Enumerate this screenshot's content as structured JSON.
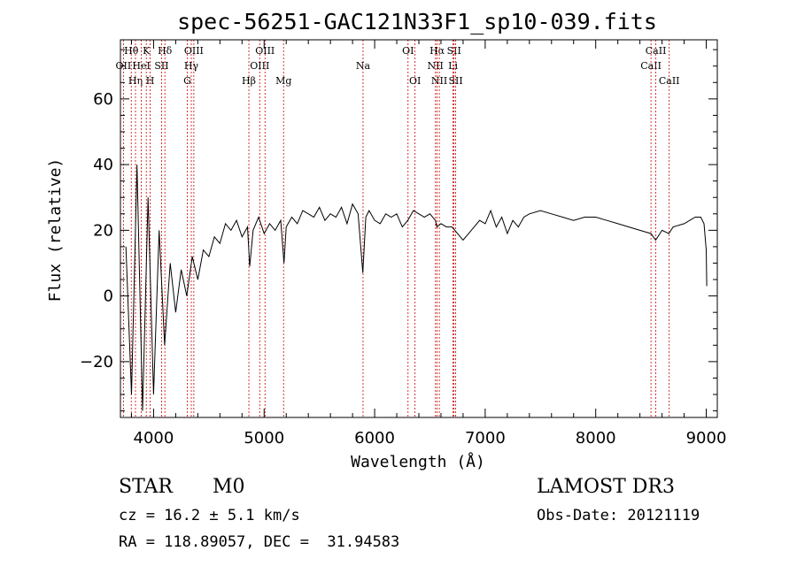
{
  "chart_data": {
    "type": "line",
    "title": "spec-56251-GAC121N33F1_sp10-039.fits",
    "xlabel": "Wavelength (Å)",
    "ylabel": "Flux (relative)",
    "xlim": [
      3700,
      9100
    ],
    "ylim": [
      -37,
      78
    ],
    "x_ticks": [
      4000,
      5000,
      6000,
      7000,
      8000,
      9000
    ],
    "x_tick_labels": [
      "4000",
      "5000",
      "6000",
      "7000",
      "8000",
      "9000"
    ],
    "y_ticks": [
      -20,
      0,
      20,
      40,
      60
    ],
    "y_tick_labels": [
      "−20",
      "0",
      "20",
      "40",
      "60"
    ],
    "grid": false,
    "line_color": "#000000",
    "marker_color": "#cc0000",
    "spectrum": {
      "name": "flux",
      "x": [
        3750,
        3800,
        3850,
        3900,
        3950,
        4000,
        4050,
        4100,
        4150,
        4200,
        4250,
        4300,
        4350,
        4400,
        4450,
        4500,
        4550,
        4600,
        4650,
        4700,
        4750,
        4800,
        4850,
        4870,
        4900,
        4950,
        5000,
        5050,
        5100,
        5150,
        5180,
        5200,
        5250,
        5300,
        5350,
        5400,
        5450,
        5500,
        5550,
        5600,
        5650,
        5700,
        5750,
        5800,
        5850,
        5893,
        5920,
        5950,
        6000,
        6050,
        6100,
        6150,
        6200,
        6250,
        6300,
        6350,
        6400,
        6450,
        6500,
        6550,
        6563,
        6600,
        6650,
        6700,
        6750,
        6800,
        6850,
        6900,
        6950,
        7000,
        7050,
        7100,
        7150,
        7200,
        7250,
        7300,
        7350,
        7400,
        7500,
        7600,
        7700,
        7800,
        7900,
        8000,
        8100,
        8200,
        8300,
        8400,
        8500,
        8542,
        8600,
        8662,
        8700,
        8800,
        8850,
        8900,
        8950,
        8980,
        9000,
        9005
      ],
      "y": [
        15,
        -30,
        40,
        -35,
        30,
        -30,
        20,
        -15,
        10,
        -5,
        8,
        0,
        12,
        5,
        14,
        12,
        18,
        16,
        22,
        20,
        23,
        18,
        21,
        9,
        20,
        24,
        19,
        22,
        20,
        23,
        10,
        21,
        24,
        22,
        26,
        25,
        24,
        27,
        23,
        25,
        24,
        27,
        22,
        28,
        25,
        7,
        24,
        26,
        23,
        22,
        25,
        24,
        25,
        21,
        23,
        26,
        25,
        24,
        25,
        23,
        21,
        22,
        21,
        21,
        19,
        17,
        19,
        21,
        23,
        22,
        26,
        21,
        24,
        19,
        23,
        21,
        24,
        25,
        26,
        25,
        24,
        23,
        24,
        24,
        23,
        22,
        21,
        20,
        19,
        17,
        20,
        19,
        21,
        22,
        23,
        24,
        24,
        22,
        14,
        3
      ]
    },
    "line_markers": [
      {
        "label": "OII",
        "x": 3727,
        "row": 2
      },
      {
        "label": "Hθ",
        "x": 3798,
        "row": 1
      },
      {
        "label": "Hη",
        "x": 3836,
        "row": 3
      },
      {
        "label": "HeI",
        "x": 3889,
        "row": 2
      },
      {
        "label": "K",
        "x": 3934,
        "row": 1
      },
      {
        "label": "H",
        "x": 3969,
        "row": 3
      },
      {
        "label": "SII",
        "x": 4072,
        "row": 2
      },
      {
        "label": "Hδ",
        "x": 4102,
        "row": 1
      },
      {
        "label": "G",
        "x": 4305,
        "row": 3
      },
      {
        "label": "Hγ",
        "x": 4341,
        "row": 2
      },
      {
        "label": "OIII",
        "x": 4364,
        "row": 1
      },
      {
        "label": "Hβ",
        "x": 4862,
        "row": 3
      },
      {
        "label": "OIII",
        "x": 4960,
        "row": 2
      },
      {
        "label": "OIII",
        "x": 5008,
        "row": 1
      },
      {
        "label": "Mg",
        "x": 5176,
        "row": 3
      },
      {
        "label": "Na",
        "x": 5895,
        "row": 2
      },
      {
        "label": "OI",
        "x": 6302,
        "row": 1
      },
      {
        "label": "OI",
        "x": 6365,
        "row": 3
      },
      {
        "label": "NII",
        "x": 6550,
        "row": 2
      },
      {
        "label": "Hα",
        "x": 6565,
        "row": 1
      },
      {
        "label": "NII",
        "x": 6585,
        "row": 3
      },
      {
        "label": "Li",
        "x": 6709,
        "row": 2
      },
      {
        "label": "SII",
        "x": 6718,
        "row": 1
      },
      {
        "label": "SII",
        "x": 6733,
        "row": 3
      },
      {
        "label": "CaII",
        "x": 8500,
        "row": 2
      },
      {
        "label": "CaII",
        "x": 8544,
        "row": 1
      },
      {
        "label": "CaII",
        "x": 8665,
        "row": 3
      }
    ]
  },
  "info": {
    "object_type": "STAR",
    "subclass": "M0",
    "survey": "LAMOST DR3",
    "cz": "cz = 16.2 ± 5.1 km/s",
    "obs_date": "Obs-Date: 20121119",
    "radec": "RA = 118.89057, DEC =  31.94583"
  }
}
